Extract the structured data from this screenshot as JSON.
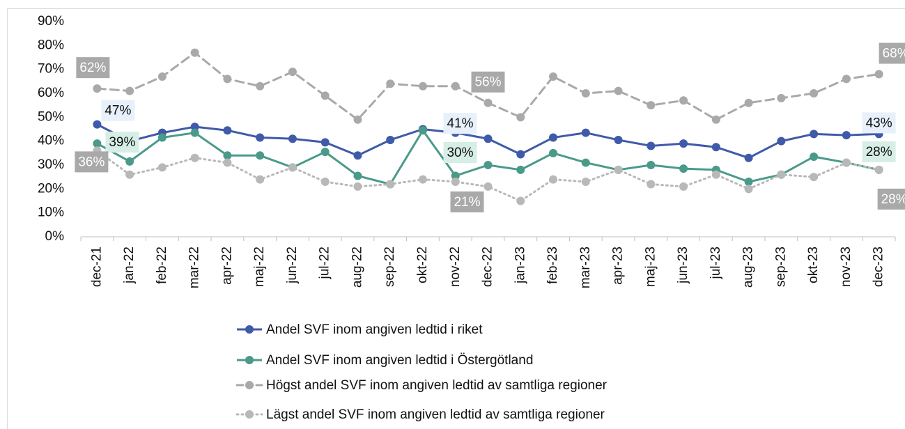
{
  "chart_data": {
    "type": "line",
    "categories": [
      "dec-21",
      "jan-22",
      "feb-22",
      "mar-22",
      "apr-22",
      "maj-22",
      "jun-22",
      "jul-22",
      "aug-22",
      "sep-22",
      "okt-22",
      "nov-22",
      "dec-22",
      "jan-23",
      "feb-23",
      "mar-23",
      "apr-23",
      "maj-23",
      "jun-23",
      "jul-23",
      "aug-23",
      "sep-23",
      "okt-23",
      "nov-23",
      "dec-23"
    ],
    "series": [
      {
        "name": "Andel SVF inom angiven ledtid i riket",
        "color": "#3f5aa8",
        "style": "solid",
        "values": [
          47,
          40,
          43.5,
          46,
          44.5,
          41.5,
          41,
          39.5,
          34,
          40.5,
          45,
          43.5,
          41,
          34.5,
          41.5,
          43.5,
          40.5,
          38,
          39,
          37.5,
          33,
          40,
          43,
          42.5,
          43
        ],
        "value_labels": [
          "47%",
          null,
          null,
          null,
          null,
          null,
          null,
          null,
          null,
          null,
          null,
          null,
          "41%",
          null,
          null,
          null,
          null,
          null,
          null,
          null,
          null,
          null,
          null,
          null,
          "43%"
        ]
      },
      {
        "name": "Andel SVF inom angiven ledtid i Östergötland",
        "color": "#4a9a8a",
        "style": "solid",
        "values": [
          39,
          31.5,
          41.5,
          43.5,
          34,
          34,
          29,
          35.5,
          25.5,
          22,
          44.5,
          25.5,
          30,
          28,
          35,
          31,
          28,
          30,
          28.5,
          28,
          23,
          26,
          33.5,
          31,
          28
        ],
        "value_labels": [
          "39%",
          null,
          null,
          null,
          null,
          null,
          null,
          null,
          null,
          null,
          null,
          null,
          "30%",
          null,
          null,
          null,
          null,
          null,
          null,
          null,
          null,
          null,
          null,
          null,
          "28%"
        ]
      },
      {
        "name": "Högst andel SVF inom angiven ledtid av samtliga regioner",
        "color": "#a9a9a9",
        "style": "dashed",
        "values": [
          62,
          61,
          67,
          77,
          66,
          63,
          69,
          59,
          49,
          64,
          63,
          63,
          56,
          50,
          67,
          60,
          61,
          55,
          57,
          49,
          56,
          58,
          60,
          66,
          68
        ],
        "value_labels": [
          "62%",
          null,
          null,
          null,
          null,
          null,
          null,
          null,
          null,
          null,
          null,
          null,
          "56%",
          null,
          null,
          null,
          null,
          null,
          null,
          null,
          null,
          null,
          null,
          null,
          "68%"
        ]
      },
      {
        "name": "Lägst andel SVF inom angiven ledtid av samtliga regioner",
        "color": "#b8b8b8",
        "style": "dotted",
        "values": [
          36,
          26,
          29,
          33,
          31,
          24,
          29,
          23,
          21,
          22,
          24,
          23,
          21,
          15,
          24,
          23,
          28,
          22,
          21,
          26,
          20,
          26,
          25,
          31,
          28
        ],
        "value_labels": [
          "36%",
          null,
          null,
          null,
          null,
          null,
          null,
          null,
          null,
          null,
          null,
          null,
          "21%",
          null,
          null,
          null,
          null,
          null,
          null,
          null,
          null,
          null,
          null,
          null,
          "28%"
        ]
      }
    ],
    "ylim": [
      0,
      90
    ],
    "yticks": [
      {
        "value": 0,
        "label": "0%"
      },
      {
        "value": 10,
        "label": "10%"
      },
      {
        "value": 20,
        "label": "20%"
      },
      {
        "value": 30,
        "label": "30%"
      },
      {
        "value": 40,
        "label": "40%"
      },
      {
        "value": 50,
        "label": "50%"
      },
      {
        "value": 60,
        "label": "60%"
      },
      {
        "value": 70,
        "label": "70%"
      },
      {
        "value": 80,
        "label": "80%"
      },
      {
        "value": 90,
        "label": "90%"
      }
    ],
    "grid": false,
    "legend": "bottom"
  }
}
